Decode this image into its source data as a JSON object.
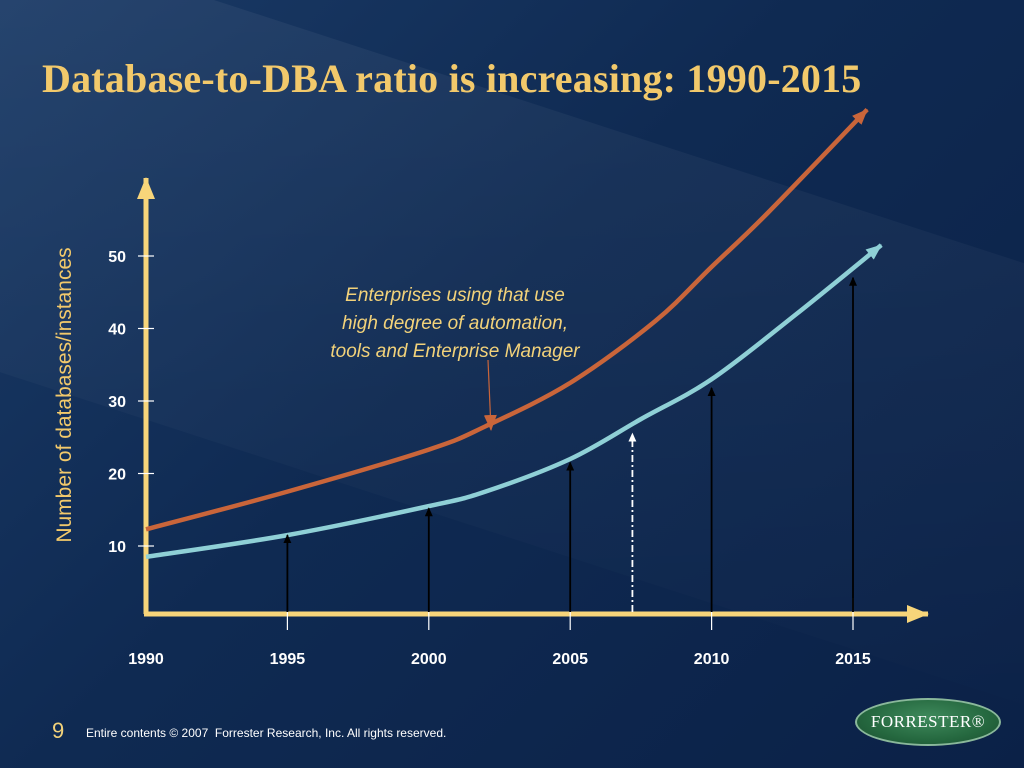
{
  "slide": {
    "title": "Database-to-DBA ratio is increasing: 1990-2015",
    "page_number": "9",
    "copyright": "Entire contents © 2007  Forrester Research, Inc. All rights reserved.",
    "logo_text": "FORRESTER®"
  },
  "colors": {
    "title": "#f2c96b",
    "axis": "#f7d57a",
    "upper_curve": "#c9653a",
    "lower_curve": "#8fd0d6",
    "arrows": "#000000",
    "dashed_arrow": "#ffffff"
  },
  "chart_data": {
    "type": "line",
    "title": "Database-to-DBA ratio is increasing: 1990-2015",
    "xlabel": "",
    "ylabel": "Number of databases/instances",
    "xlim": [
      1990,
      2017
    ],
    "ylim": [
      0,
      58
    ],
    "x_ticks": [
      "1990",
      "1995",
      "2000",
      "2005",
      "2010",
      "2015"
    ],
    "y_ticks": [
      "10",
      "20",
      "30",
      "40",
      "50"
    ],
    "grid": false,
    "series": [
      {
        "key": "upper",
        "color": "#c9653a",
        "x": [
          1990,
          1995,
          2000,
          2002,
          2005,
          2008,
          2010,
          2012,
          2015.5
        ],
        "y": [
          12.3,
          17.5,
          23.3,
          26.5,
          32.5,
          41,
          48.5,
          56,
          70.2
        ]
      },
      {
        "key": "lower",
        "color": "#8fd0d6",
        "x": [
          1990,
          1995,
          2000,
          2002,
          2005,
          2007.5,
          2010,
          2013,
          2016
        ],
        "y": [
          8.5,
          11.5,
          15.5,
          17.5,
          22,
          27.5,
          33,
          42,
          51.5
        ]
      }
    ],
    "vertical_arrows": [
      {
        "x": 1995,
        "y": 11.5,
        "style": "solid"
      },
      {
        "x": 2000,
        "y": 15.2,
        "style": "solid"
      },
      {
        "x": 2005,
        "y": 21.5,
        "style": "solid"
      },
      {
        "x": 2007.2,
        "y": 25.5,
        "style": "dashed"
      },
      {
        "x": 2010,
        "y": 31.8,
        "style": "solid"
      },
      {
        "x": 2015,
        "y": 47,
        "style": "solid"
      }
    ],
    "annotation": {
      "lines": [
        "Enterprises using that use",
        "high degree of automation,",
        "tools and Enterprise Manager"
      ],
      "points_to": {
        "x": 2002.2,
        "y": 26
      }
    }
  }
}
